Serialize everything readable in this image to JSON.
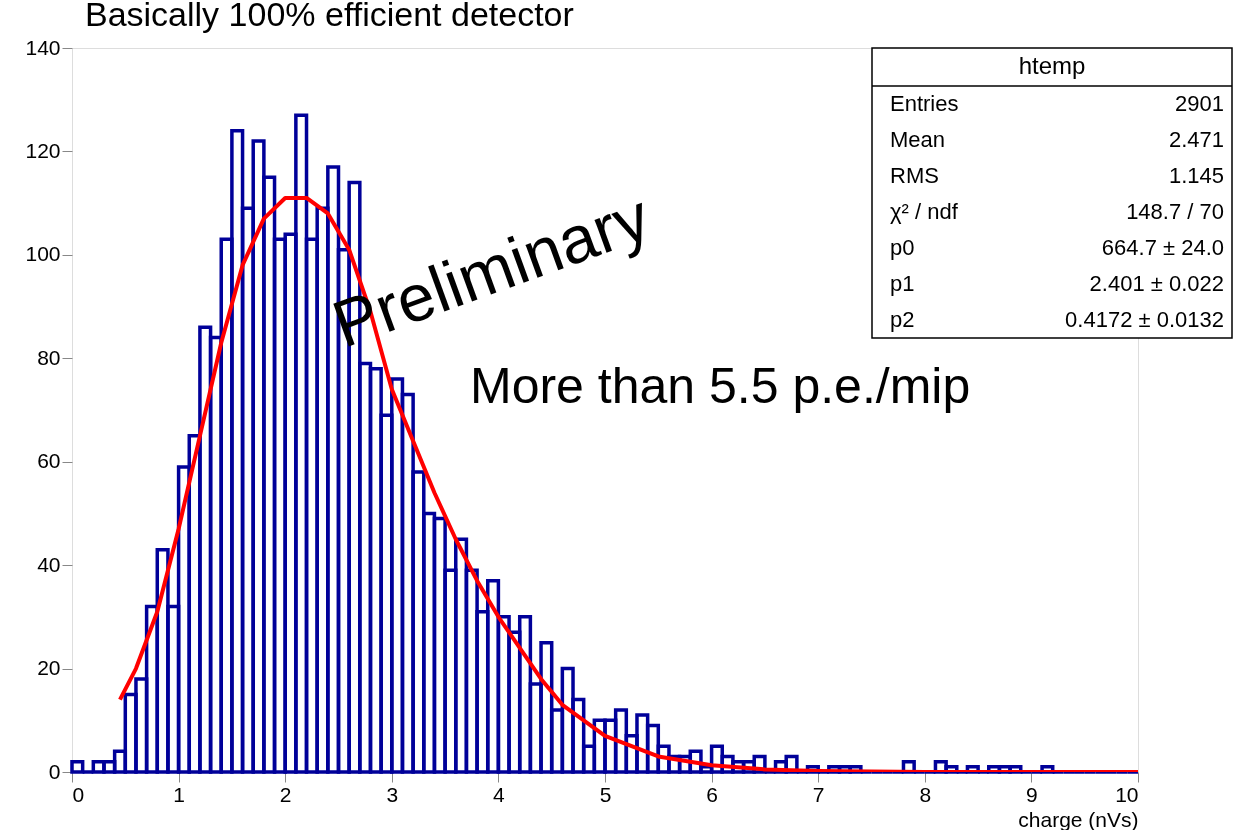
{
  "chart_data": {
    "type": "histogram",
    "title": "Basically 100% efficient detector",
    "xlabel": "charge (nVs)",
    "bins": [
      0,
      0.1,
      0.2,
      0.3,
      0.4,
      0.5,
      0.6,
      0.7,
      0.8,
      0.9,
      1,
      1.1,
      1.2,
      1.3,
      1.4,
      1.5,
      1.6,
      1.7,
      1.8,
      1.9,
      2,
      2.1,
      2.2,
      2.3,
      2.4,
      2.5,
      2.6,
      2.7,
      2.8,
      2.9,
      3,
      3.1,
      3.2,
      3.3,
      3.4,
      3.5,
      3.6,
      3.7,
      3.8,
      3.9,
      4,
      4.1,
      4.2,
      4.3,
      4.4,
      4.5,
      4.6,
      4.7,
      4.8,
      4.9,
      5,
      5.1,
      5.2,
      5.3,
      5.4,
      5.5,
      5.6,
      5.7,
      5.8,
      5.9,
      6,
      6.1,
      6.2,
      6.3,
      6.4,
      6.5,
      6.6,
      6.7,
      6.8,
      6.9,
      7,
      7.1,
      7.2,
      7.3,
      7.4,
      7.5,
      7.6,
      7.7,
      7.8,
      7.9,
      8,
      8.1,
      8.2,
      8.3,
      8.4,
      8.5,
      8.6,
      8.7,
      8.8,
      8.9,
      9,
      9.1,
      9.2,
      9.3,
      9.4,
      9.5,
      9.6,
      9.7,
      9.8,
      9.9,
      10
    ],
    "values": [
      2,
      0,
      2,
      2,
      4,
      15,
      18,
      32,
      43,
      32,
      59,
      65,
      86,
      84,
      103,
      124,
      109,
      122,
      115,
      103,
      104,
      127,
      103,
      109,
      117,
      101,
      114,
      79,
      78,
      69,
      76,
      73,
      58,
      50,
      49,
      39,
      45,
      39,
      31,
      37,
      30,
      27,
      30,
      17,
      25,
      12,
      20,
      14,
      5,
      10,
      10,
      12,
      7,
      11,
      9,
      5,
      3,
      3,
      4,
      1,
      5,
      3,
      2,
      2,
      3,
      0,
      2,
      3,
      0,
      1,
      0,
      1,
      1,
      1,
      0,
      0,
      0,
      0,
      2,
      0,
      0,
      2,
      1,
      0,
      1,
      0,
      1,
      1,
      1,
      0,
      0,
      1,
      0,
      0,
      0,
      0,
      0,
      0,
      0,
      0
    ],
    "color": "#000099",
    "series": [
      {
        "type": "line",
        "color": "#ff0000",
        "x": [
          0.45,
          0.6,
          0.8,
          1.0,
          1.2,
          1.4,
          1.6,
          1.8,
          2.0,
          2.2,
          2.4,
          2.6,
          2.8,
          3.0,
          3.2,
          3.4,
          3.6,
          3.8,
          4.0,
          4.2,
          4.4,
          4.6,
          4.8,
          5.0,
          5.5,
          6.0,
          6.5,
          7.0,
          8.0,
          10.0
        ],
        "values": [
          14,
          20,
          31,
          47,
          65,
          83,
          98,
          107,
          111,
          111,
          108,
          101,
          89,
          74,
          64,
          54,
          45,
          37,
          30,
          24,
          18,
          13,
          10,
          7,
          3,
          1.3,
          0.5,
          0.2,
          0,
          0
        ]
      }
    ],
    "xlim": [
      0,
      10
    ],
    "xticks": [
      0,
      1,
      2,
      3,
      4,
      5,
      6,
      7,
      8,
      9,
      10
    ],
    "ylim": [
      0,
      140
    ],
    "yticks": [
      0,
      20,
      40,
      60,
      80,
      100,
      120,
      140
    ],
    "grid": false,
    "annotations": [
      "Preliminary",
      "More than 5.5 p.e./mip",
      "htemp",
      "Entries",
      "2901",
      "Mean",
      "2.471",
      "RMS",
      "1.145",
      "χ² / ndf",
      "148.7 / 70",
      "p0",
      "664.7 ±  24.0",
      "p1",
      "2.401 ±  0.022",
      "p2",
      "0.4172 ±  0.0132"
    ]
  }
}
